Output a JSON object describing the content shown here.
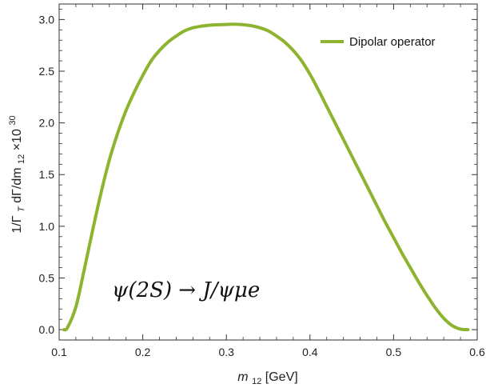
{
  "chart_data": {
    "type": "line",
    "xlabel_main": "m",
    "xlabel_sub": "12",
    "xlabel_unit": "[GeV]",
    "ylabel_main": "1/Γ",
    "ylabel_sub1": "T",
    "ylabel_mid": " dΓ/dm",
    "ylabel_sub2": "12",
    "ylabel_times": "×10",
    "ylabel_sup": "30",
    "xlim": [
      0.1,
      0.6
    ],
    "ylim": [
      -0.1,
      3.15
    ],
    "x_ticks": [
      "0.1",
      "0.2",
      "0.3",
      "0.4",
      "0.5",
      "0.6"
    ],
    "y_ticks": [
      "0.0",
      "0.5",
      "1.0",
      "1.5",
      "2.0",
      "2.5",
      "3.0"
    ],
    "grid": false,
    "legend_placement": "top-right",
    "series": [
      {
        "name": "Dipolar operator",
        "color": "#8db42f",
        "x": [
          0.1057,
          0.11,
          0.12,
          0.13,
          0.14,
          0.15,
          0.16,
          0.17,
          0.18,
          0.19,
          0.2,
          0.21,
          0.22,
          0.23,
          0.24,
          0.25,
          0.26,
          0.27,
          0.28,
          0.29,
          0.3,
          0.31,
          0.32,
          0.33,
          0.34,
          0.35,
          0.36,
          0.37,
          0.38,
          0.39,
          0.4,
          0.41,
          0.42,
          0.43,
          0.44,
          0.45,
          0.46,
          0.47,
          0.48,
          0.49,
          0.5,
          0.51,
          0.52,
          0.53,
          0.54,
          0.55,
          0.56,
          0.57,
          0.58,
          0.589
        ],
        "y": [
          0.0,
          0.02,
          0.22,
          0.58,
          0.96,
          1.32,
          1.64,
          1.9,
          2.12,
          2.3,
          2.46,
          2.6,
          2.7,
          2.78,
          2.84,
          2.89,
          2.92,
          2.935,
          2.945,
          2.95,
          2.952,
          2.955,
          2.95,
          2.94,
          2.92,
          2.89,
          2.84,
          2.78,
          2.7,
          2.6,
          2.47,
          2.32,
          2.16,
          2.0,
          1.84,
          1.68,
          1.52,
          1.36,
          1.2,
          1.04,
          0.89,
          0.74,
          0.6,
          0.46,
          0.33,
          0.21,
          0.11,
          0.04,
          0.005,
          0.0
        ]
      }
    ],
    "annotation": "ψ(2S) → J/ψμe"
  }
}
